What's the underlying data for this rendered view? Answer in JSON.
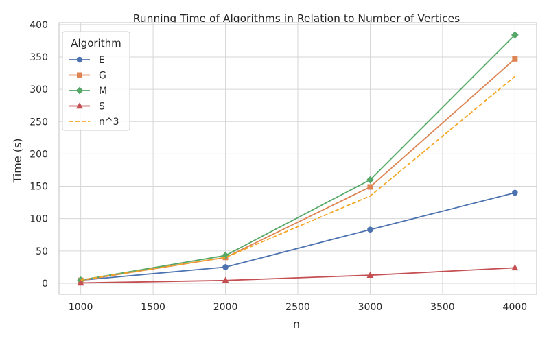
{
  "chart_data": {
    "type": "line",
    "title": "Running Time of Algorithms in Relation to Number of Vertices",
    "xlabel": "n",
    "ylabel": "Time (s)",
    "x": [
      1000,
      2000,
      3000,
      4000
    ],
    "xlim": [
      850,
      4150
    ],
    "ylim": [
      -17,
      403
    ],
    "xticks": [
      1000,
      1500,
      2000,
      2500,
      3000,
      3500,
      4000
    ],
    "yticks": [
      0,
      50,
      100,
      150,
      200,
      250,
      300,
      350,
      400
    ],
    "grid": true,
    "legend": {
      "title": "Algorithm",
      "placement": "top-left"
    },
    "series": [
      {
        "name": "E",
        "values": [
          4.8,
          25,
          83,
          140
        ],
        "color": "#4c72b0",
        "marker": "circle",
        "dash": "solid"
      },
      {
        "name": "G",
        "values": [
          4.5,
          40,
          149,
          347
        ],
        "color": "#dd8452",
        "marker": "square",
        "dash": "solid"
      },
      {
        "name": "M",
        "values": [
          5.0,
          43,
          160,
          384
        ],
        "color": "#55a868",
        "marker": "diamond",
        "dash": "solid"
      },
      {
        "name": "S",
        "values": [
          0.5,
          4.5,
          12.5,
          24
        ],
        "color": "#c44e52",
        "marker": "triangle",
        "dash": "solid"
      },
      {
        "name": "n^3",
        "values": [
          5,
          40,
          135,
          320
        ],
        "color": "#f5a623",
        "marker": "none",
        "dash": "dashed"
      }
    ]
  }
}
